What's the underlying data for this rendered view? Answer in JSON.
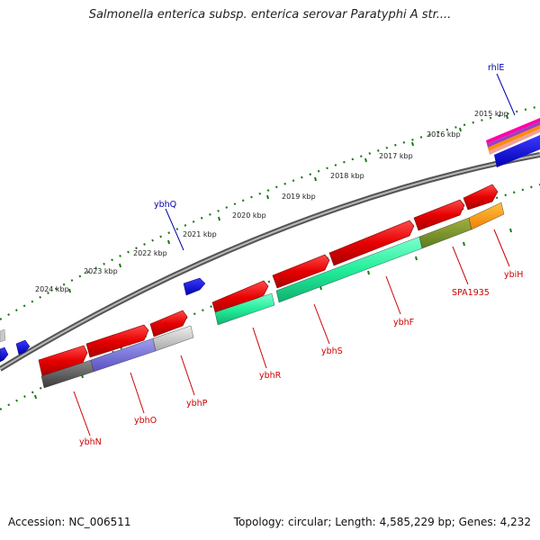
{
  "header": {
    "title": "Salmonella enterica subsp. enterica serovar Paratyphi A str...."
  },
  "footer": {
    "accession_label": "Accession:",
    "accession_value": "NC_006511",
    "topology_label": "Topology:",
    "topology_value": "circular;",
    "length_label": "Length:",
    "length_value": "4,585,229 bp;",
    "genes_label": "Genes:",
    "genes_value": "4,232"
  },
  "colors": {
    "label_red": "#cc0000",
    "label_blue": "#0000aa",
    "backbone": "#808080",
    "tick_green": "#1a7a1a"
  },
  "scale": {
    "unit": "kbp",
    "ticks": [
      "2015 kbp",
      "2016 kbp",
      "2017 kbp",
      "2018 kbp",
      "2019 kbp",
      "2020 kbp",
      "2021 kbp",
      "2022 kbp",
      "2023 kbp",
      "2024 kbp"
    ]
  },
  "genes": {
    "labels_below": [
      {
        "name": "ybhN",
        "color": "red"
      },
      {
        "name": "ybhO",
        "color": "red"
      },
      {
        "name": "ybhP",
        "color": "red"
      },
      {
        "name": "ybhR",
        "color": "red"
      },
      {
        "name": "ybhS",
        "color": "red"
      },
      {
        "name": "ybhF",
        "color": "red"
      },
      {
        "name": "SPA1935",
        "color": "red"
      },
      {
        "name": "ybiH",
        "color": "red"
      }
    ],
    "labels_above": [
      {
        "name": "ybhQ",
        "color": "blue"
      },
      {
        "name": "rhlE",
        "color": "blue"
      }
    ]
  }
}
